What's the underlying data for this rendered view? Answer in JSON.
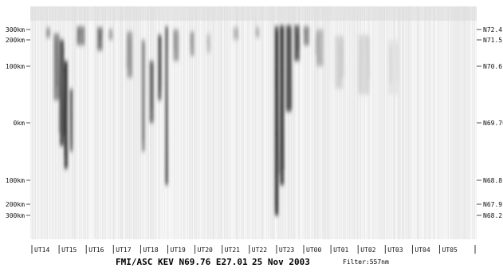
{
  "chart_data": {
    "type": "heatmap",
    "colormap": "inverted grayscale",
    "x_tick_labels": [
      "UT14",
      "UT15",
      "UT16",
      "UT17",
      "UT18",
      "UT19",
      "UT20",
      "UT21",
      "UT22",
      "UT23",
      "UT00",
      "UT01",
      "UT02",
      "UT03",
      "UT04",
      "UT05"
    ],
    "y_left_ticks": [
      {
        "label": "300km",
        "km": 300
      },
      {
        "label": "200km",
        "km": 200
      },
      {
        "label": "100km",
        "km": 100
      },
      {
        "label": "0km",
        "km": 0
      },
      {
        "label": "100km",
        "km": -100
      },
      {
        "label": "200km",
        "km": -200
      },
      {
        "label": "300km",
        "km": -300
      }
    ],
    "y_right_ticks": [
      {
        "label": "N72.4",
        "lat": 72.4
      },
      {
        "label": "N71.5",
        "lat": 71.5
      },
      {
        "label": "N70.6",
        "lat": 70.6
      },
      {
        "label": "N69.76",
        "lat": 69.76
      },
      {
        "label": "N68.8",
        "lat": 68.8
      },
      {
        "label": "N67.9",
        "lat": 67.9
      },
      {
        "label": "N68.2",
        "lat": 68.2
      }
    ],
    "bands": [
      {
        "ut": 14.6,
        "width": 0.15,
        "top": 320,
        "bottom": 220,
        "intensity": 0.45
      },
      {
        "ut": 14.9,
        "width": 0.2,
        "top": 260,
        "bottom": 40,
        "intensity": 0.55
      },
      {
        "ut": 15.1,
        "width": 0.15,
        "top": 200,
        "bottom": -40,
        "intensity": 0.8
      },
      {
        "ut": 15.25,
        "width": 0.12,
        "top": 120,
        "bottom": -80,
        "intensity": 0.9
      },
      {
        "ut": 15.45,
        "width": 0.1,
        "top": 60,
        "bottom": -50,
        "intensity": 0.7
      },
      {
        "ut": 15.8,
        "width": 0.3,
        "top": 330,
        "bottom": 180,
        "intensity": 0.55
      },
      {
        "ut": 16.5,
        "width": 0.2,
        "top": 320,
        "bottom": 160,
        "intensity": 0.6
      },
      {
        "ut": 16.9,
        "width": 0.15,
        "top": 300,
        "bottom": 200,
        "intensity": 0.4
      },
      {
        "ut": 17.6,
        "width": 0.2,
        "top": 280,
        "bottom": 80,
        "intensity": 0.45
      },
      {
        "ut": 18.1,
        "width": 0.12,
        "top": 200,
        "bottom": -50,
        "intensity": 0.5
      },
      {
        "ut": 18.4,
        "width": 0.15,
        "top": 120,
        "bottom": 0,
        "intensity": 0.65
      },
      {
        "ut": 18.7,
        "width": 0.12,
        "top": 250,
        "bottom": 40,
        "intensity": 0.75
      },
      {
        "ut": 18.95,
        "width": 0.08,
        "top": 330,
        "bottom": -120,
        "intensity": 0.8
      },
      {
        "ut": 19.3,
        "width": 0.2,
        "top": 300,
        "bottom": 120,
        "intensity": 0.45
      },
      {
        "ut": 19.9,
        "width": 0.15,
        "top": 280,
        "bottom": 140,
        "intensity": 0.4
      },
      {
        "ut": 20.5,
        "width": 0.15,
        "top": 260,
        "bottom": 150,
        "intensity": 0.25
      },
      {
        "ut": 21.5,
        "width": 0.2,
        "top": 320,
        "bottom": 200,
        "intensity": 0.3
      },
      {
        "ut": 22.3,
        "width": 0.15,
        "top": 320,
        "bottom": 220,
        "intensity": 0.3
      },
      {
        "ut": 23.0,
        "width": 0.12,
        "top": 330,
        "bottom": -300,
        "intensity": 0.95
      },
      {
        "ut": 23.2,
        "width": 0.15,
        "top": 340,
        "bottom": -120,
        "intensity": 0.85
      },
      {
        "ut": 23.45,
        "width": 0.2,
        "top": 340,
        "bottom": 20,
        "intensity": 0.8
      },
      {
        "ut": 23.75,
        "width": 0.2,
        "top": 340,
        "bottom": 120,
        "intensity": 0.75
      },
      {
        "ut": 24.1,
        "width": 0.2,
        "top": 330,
        "bottom": 180,
        "intensity": 0.55
      },
      {
        "ut": 24.6,
        "width": 0.25,
        "top": 300,
        "bottom": 100,
        "intensity": 0.35
      },
      {
        "ut": 25.3,
        "width": 0.3,
        "top": 240,
        "bottom": 60,
        "intensity": 0.2
      },
      {
        "ut": 26.2,
        "width": 0.4,
        "top": 250,
        "bottom": 50,
        "intensity": 0.18
      },
      {
        "ut": 27.3,
        "width": 0.4,
        "top": 200,
        "bottom": 50,
        "intensity": 0.12
      }
    ]
  },
  "footer": {
    "station": "FMI/ASC KEV N69.76 E27.01",
    "date": "25 Nov 2003",
    "filter": "Filter:557nm"
  }
}
